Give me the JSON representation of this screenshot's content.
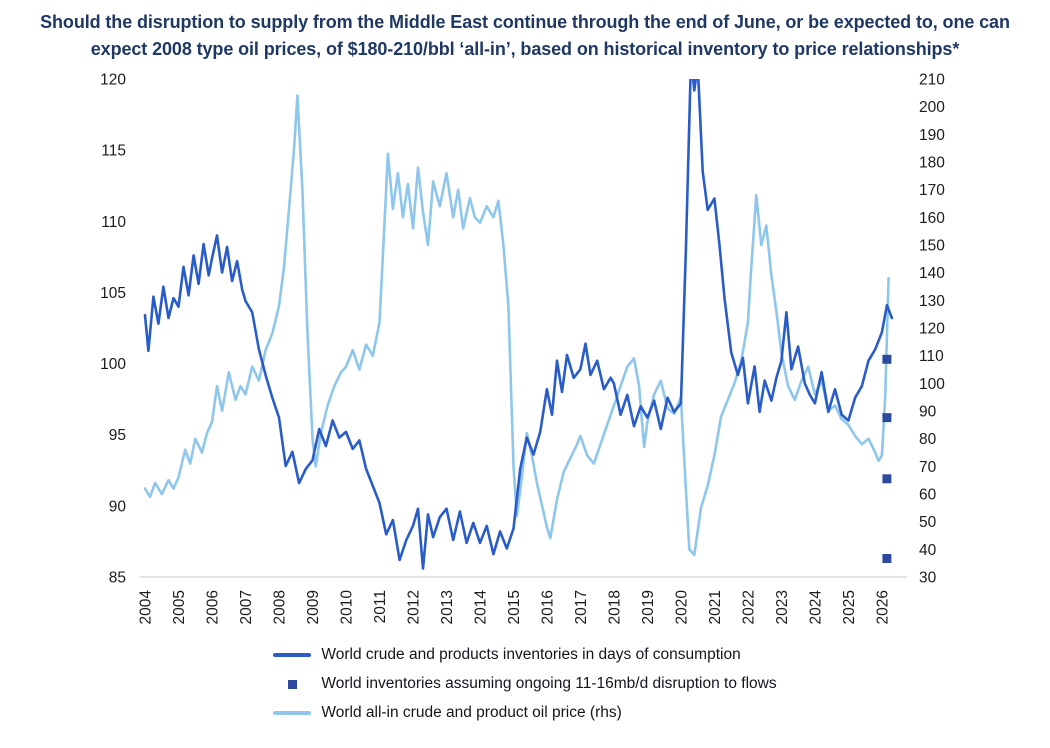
{
  "header": {
    "title_lines": [
      "Should the disruption to supply from the Middle East continue through the end of June, or be expected to, one can",
      "expect 2008 type oil prices, of $180-210/bbl ‘all-in’, based on historical inventory to price relationships*"
    ]
  },
  "colors": {
    "title_text": "#1f3864",
    "axis_text": "#1c1c1c",
    "axis_line": "#c9c9c9",
    "background": "#ffffff"
  },
  "chart_data": {
    "type": "line",
    "title": "Should the disruption to supply from the Middle East continue through the end of June, or be expected to, one can expect 2008 type oil prices, of $180-210/bbl ‘all-in’, based on historical inventory to price relationships*",
    "grid": false,
    "legend_position": "bottom",
    "axis_line_color": "#c9c9c9",
    "x_axis": {
      "min": 2003.85,
      "max": 2026.75,
      "ticks": [
        2004,
        2005,
        2006,
        2007,
        2008,
        2009,
        2010,
        2011,
        2012,
        2013,
        2014,
        2015,
        2016,
        2017,
        2018,
        2019,
        2020,
        2021,
        2022,
        2023,
        2024,
        2025,
        2026
      ]
    },
    "y_axis_left": {
      "min": 85,
      "max": 120,
      "ticks": [
        85,
        90,
        95,
        100,
        105,
        110,
        115,
        120
      ]
    },
    "y_axis_right": {
      "min": 30,
      "max": 210,
      "ticks": [
        30,
        40,
        50,
        60,
        70,
        80,
        90,
        100,
        110,
        120,
        130,
        140,
        150,
        160,
        170,
        180,
        190,
        200,
        210
      ]
    },
    "draw_order": [
      2,
      0,
      1
    ],
    "series": [
      {
        "id": "inventories",
        "name": "World crude and products inventories in days of consumption",
        "axis": "left",
        "type": "line",
        "swatch": "line",
        "color": "#2a5cc8",
        "x": [
          2004.0,
          2004.1,
          2004.25,
          2004.4,
          2004.55,
          2004.7,
          2004.85,
          2005.0,
          2005.15,
          2005.3,
          2005.45,
          2005.6,
          2005.75,
          2005.9,
          2006.0,
          2006.15,
          2006.3,
          2006.45,
          2006.6,
          2006.75,
          2006.9,
          2007.0,
          2007.2,
          2007.4,
          2007.6,
          2007.8,
          2008.0,
          2008.2,
          2008.4,
          2008.6,
          2008.8,
          2009.0,
          2009.2,
          2009.4,
          2009.6,
          2009.8,
          2010.0,
          2010.2,
          2010.4,
          2010.6,
          2010.8,
          2011.0,
          2011.2,
          2011.4,
          2011.6,
          2011.8,
          2012.0,
          2012.15,
          2012.3,
          2012.45,
          2012.6,
          2012.8,
          2013.0,
          2013.2,
          2013.4,
          2013.6,
          2013.8,
          2014.0,
          2014.2,
          2014.4,
          2014.6,
          2014.8,
          2015.0,
          2015.2,
          2015.4,
          2015.6,
          2015.8,
          2016.0,
          2016.15,
          2016.3,
          2016.45,
          2016.6,
          2016.8,
          2017.0,
          2017.15,
          2017.3,
          2017.5,
          2017.7,
          2017.9,
          2018.0,
          2018.2,
          2018.4,
          2018.6,
          2018.8,
          2019.0,
          2019.2,
          2019.4,
          2019.6,
          2019.8,
          2020.0,
          2020.15,
          2020.3,
          2020.4,
          2020.5,
          2020.65,
          2020.8,
          2021.0,
          2021.15,
          2021.3,
          2021.5,
          2021.7,
          2021.85,
          2022.0,
          2022.2,
          2022.35,
          2022.5,
          2022.7,
          2022.85,
          2023.0,
          2023.15,
          2023.3,
          2023.5,
          2023.7,
          2023.85,
          2024.0,
          2024.2,
          2024.4,
          2024.6,
          2024.8,
          2025.0,
          2025.2,
          2025.4,
          2025.6,
          2025.8,
          2026.0,
          2026.15,
          2026.3
        ],
        "y": [
          103.4,
          100.9,
          104.7,
          102.8,
          105.4,
          103.2,
          104.6,
          104.0,
          106.8,
          104.8,
          107.6,
          105.6,
          108.4,
          106.2,
          107.4,
          109.0,
          106.4,
          108.2,
          105.8,
          107.2,
          105.2,
          104.4,
          103.6,
          101.0,
          99.2,
          97.6,
          96.2,
          92.8,
          93.8,
          91.6,
          92.6,
          93.2,
          95.4,
          94.2,
          96.0,
          94.8,
          95.2,
          94.0,
          94.6,
          92.6,
          91.4,
          90.2,
          88.0,
          89.0,
          86.2,
          87.6,
          88.6,
          89.8,
          85.6,
          89.4,
          87.8,
          89.2,
          89.8,
          87.6,
          89.6,
          87.4,
          88.8,
          87.4,
          88.6,
          86.6,
          88.2,
          87.0,
          88.4,
          92.6,
          94.8,
          93.6,
          95.2,
          98.2,
          96.4,
          100.2,
          98.0,
          100.6,
          99.0,
          99.6,
          101.4,
          99.2,
          100.2,
          98.2,
          99.0,
          98.6,
          96.4,
          97.8,
          95.6,
          97.0,
          96.2,
          97.4,
          95.4,
          97.6,
          96.6,
          97.2,
          108.0,
          121.5,
          119.2,
          121.0,
          113.5,
          110.8,
          111.6,
          108.4,
          104.6,
          100.8,
          99.2,
          100.4,
          97.2,
          99.8,
          96.6,
          98.8,
          97.4,
          99.0,
          100.2,
          103.6,
          99.6,
          101.2,
          98.6,
          97.8,
          97.2,
          99.4,
          96.6,
          98.2,
          96.4,
          96.0,
          97.6,
          98.4,
          100.2,
          101.0,
          102.2,
          104.1,
          103.2
        ]
      },
      {
        "id": "disruption-scenario",
        "name": "World inventories assuming ongoing 11-16mb/d disruption to flows",
        "axis": "left",
        "type": "scatter",
        "marker": "square",
        "swatch": "square",
        "color": "#2d4a9e",
        "x": [
          2026.15,
          2026.15,
          2026.15,
          2026.15
        ],
        "y": [
          100.3,
          96.2,
          91.9,
          86.3
        ]
      },
      {
        "id": "oil-price",
        "name": "World all-in crude and product oil price (rhs)",
        "axis": "right",
        "type": "line",
        "swatch": "line",
        "color": "#8fc6ec",
        "x": [
          2004.0,
          2004.15,
          2004.3,
          2004.5,
          2004.7,
          2004.85,
          2005.0,
          2005.2,
          2005.35,
          2005.5,
          2005.7,
          2005.85,
          2006.0,
          2006.15,
          2006.3,
          2006.5,
          2006.7,
          2006.85,
          2007.0,
          2007.2,
          2007.4,
          2007.6,
          2007.8,
          2008.0,
          2008.15,
          2008.3,
          2008.45,
          2008.55,
          2008.7,
          2008.85,
          2009.0,
          2009.1,
          2009.25,
          2009.45,
          2009.65,
          2009.85,
          2010.0,
          2010.2,
          2010.4,
          2010.6,
          2010.8,
          2011.0,
          2011.15,
          2011.25,
          2011.4,
          2011.55,
          2011.7,
          2011.85,
          2012.0,
          2012.15,
          2012.3,
          2012.45,
          2012.6,
          2012.8,
          2013.0,
          2013.2,
          2013.35,
          2013.5,
          2013.7,
          2013.85,
          2014.0,
          2014.2,
          2014.4,
          2014.55,
          2014.7,
          2014.85,
          2015.0,
          2015.1,
          2015.25,
          2015.4,
          2015.55,
          2015.7,
          2015.85,
          2016.0,
          2016.1,
          2016.3,
          2016.5,
          2016.7,
          2016.9,
          2017.0,
          2017.2,
          2017.4,
          2017.6,
          2017.8,
          2018.0,
          2018.2,
          2018.4,
          2018.6,
          2018.75,
          2018.9,
          2019.0,
          2019.2,
          2019.4,
          2019.6,
          2019.8,
          2020.0,
          2020.1,
          2020.25,
          2020.4,
          2020.6,
          2020.8,
          2021.0,
          2021.2,
          2021.4,
          2021.6,
          2021.8,
          2022.0,
          2022.1,
          2022.25,
          2022.4,
          2022.55,
          2022.7,
          2022.85,
          2023.0,
          2023.2,
          2023.4,
          2023.6,
          2023.8,
          2024.0,
          2024.2,
          2024.4,
          2024.6,
          2024.8,
          2025.0,
          2025.2,
          2025.4,
          2025.6,
          2025.8,
          2025.9,
          2026.0,
          2026.1,
          2026.2
        ],
        "y": [
          62,
          59,
          64,
          60,
          65,
          62,
          66,
          76,
          71,
          80,
          75,
          82,
          86,
          99,
          90,
          104,
          94,
          99,
          96,
          106,
          101,
          112,
          118,
          128,
          142,
          163,
          185,
          204,
          170,
          118,
          80,
          70,
          82,
          92,
          99,
          104,
          106,
          112,
          105,
          114,
          110,
          122,
          158,
          183,
          163,
          176,
          160,
          172,
          156,
          178,
          162,
          150,
          173,
          164,
          176,
          160,
          170,
          156,
          167,
          160,
          158,
          164,
          160,
          166,
          150,
          128,
          70,
          52,
          66,
          82,
          74,
          64,
          56,
          48,
          44,
          58,
          68,
          73,
          78,
          81,
          74,
          71,
          78,
          85,
          92,
          99,
          106,
          109,
          99,
          77,
          86,
          96,
          101,
          91,
          89,
          95,
          72,
          40,
          38,
          55,
          63,
          74,
          88,
          94,
          100,
          108,
          122,
          142,
          168,
          150,
          157,
          139,
          126,
          111,
          99,
          94,
          101,
          106,
          96,
          101,
          90,
          92,
          87,
          85,
          81,
          78,
          80,
          75,
          72,
          74,
          95,
          138
        ]
      }
    ]
  }
}
